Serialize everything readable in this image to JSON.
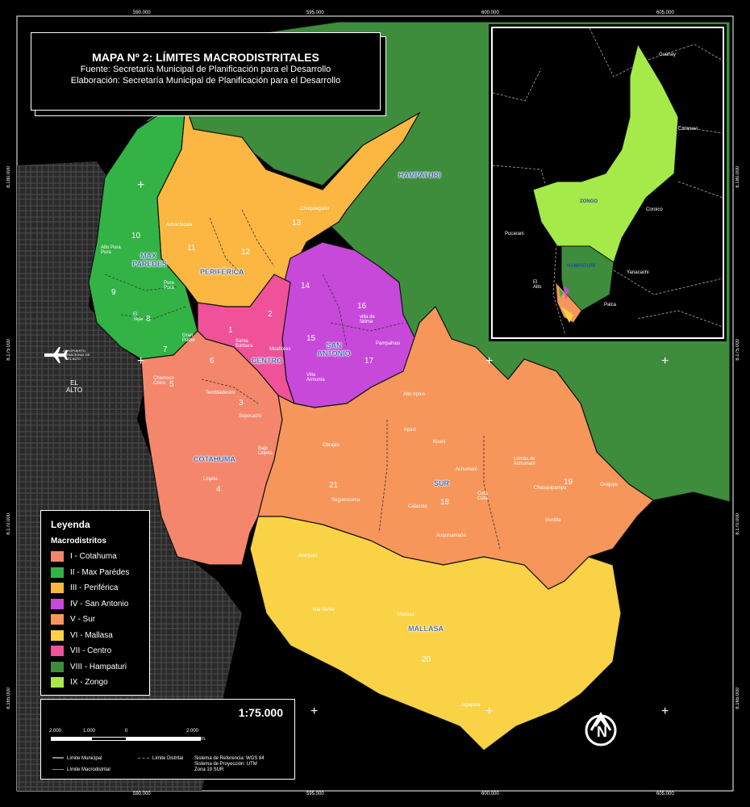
{
  "title": "MAPA Nº 2: LÍMITES MACRODISTRITALES",
  "source": "Fuente: Secretaría Municipal de Planificación para el Desarrollo",
  "elaboration": "Elaboración: Secretaría Municipal de Planificación para el Desarrollo",
  "coords_top": [
    "590.000",
    "595.000",
    "600.000",
    "605.000"
  ],
  "coords_bottom": [
    "590.000",
    "595.000",
    "600.000",
    "605.000"
  ],
  "coords_left": [
    "8.180.000",
    "8.175.000",
    "8.170.000",
    "8.165.000"
  ],
  "coords_right": [
    "8.180.000",
    "8.175.000",
    "8.170.000",
    "8.165.000"
  ],
  "legend": {
    "title": "Leyenda",
    "subtitle": "Macrodistritos",
    "items": [
      {
        "label": "I - Cotahuma",
        "color": "#f4876b"
      },
      {
        "label": "II - Max Parédes",
        "color": "#33b345"
      },
      {
        "label": "III - Periférica",
        "color": "#fbb741"
      },
      {
        "label": "IV - San Antonio",
        "color": "#c649d9"
      },
      {
        "label": "V - Sur",
        "color": "#f7965a"
      },
      {
        "label": "VI - Mallasa",
        "color": "#fad246"
      },
      {
        "label": "VII - Centro",
        "color": "#f0529a"
      },
      {
        "label": "VIII - Hampaturi",
        "color": "#3d8d3c"
      },
      {
        "label": "IX - Zongo",
        "color": "#a5ea48"
      }
    ]
  },
  "scale": {
    "ratio": "1:75.000",
    "ticks": [
      "2.000",
      "1.000",
      "0",
      "2.000"
    ],
    "unit": "m.",
    "municipal": "Límite Municipal",
    "macro": "Límite Macrodistrital",
    "distrital": "Límite Distrital",
    "ref": "Sistema de Referencia: WGS 84",
    "proj": "Sistema de Proyección: UTM",
    "zone": "Zona 19 SUR"
  },
  "macrodistricts": {
    "max_paredes": "MAX PAREDES",
    "periferica": "PERIFÉRICA",
    "centro": "CENTRO",
    "san_antonio": "SAN ANTONIO",
    "cotahuma": "COTAHUMA",
    "sur": "SUR",
    "mallasa": "MALLASA",
    "hampaturi": "HAMPATURI"
  },
  "el_alto": "EL ALTO",
  "airport": "AEROPUERTO INTERNACIONAL DE EL ALTO",
  "district_numbers": [
    "10",
    "11",
    "12",
    "13",
    "9",
    "8",
    "7",
    "1",
    "2",
    "14",
    "15",
    "16",
    "17",
    "6",
    "5",
    "3",
    "4",
    "21",
    "18",
    "19",
    "20"
  ],
  "places": {
    "achachicala": "Achachicala",
    "chuquiaguillo": "Chuquiaguillo",
    "alto_pura_pura": "Alto Pura Pura",
    "pura_pura": "Pura Pura",
    "el_tejar": "El Tejar",
    "gran_poder": "Gran Poder",
    "santa_barbara": "Santa Bárbara",
    "miraflores": "Miraflores",
    "villa_fatima": "villa de fátima",
    "pampahasi": "Pampahasi",
    "villa_armonia": "Villa Armonía",
    "chamoco_chico": "Chamoco Chico",
    "tembladerani": "Tembladerani",
    "sopocachi": "Sopocachi",
    "bajo_llojeta": "Bajo Llojeta",
    "llojeta": "Llojeta",
    "alto_irpavi": "Alto Irpavi",
    "irpavi": "Irpavi",
    "koani": "Koani",
    "obrajes": "Obrajes",
    "achumani": "Achumani",
    "lomas_achumani": "Lomas de Achumani",
    "calacoto": "Calacoto",
    "seguencoma": "Seguencoma",
    "cota_cota": "Cota Cota",
    "chasquipampa": "Chasquipampa",
    "ovejuyo": "Ovejuyo",
    "auquisamana": "Auquisamaña",
    "aranjuez": "Aranjuez",
    "isla_verde": "Isla Verde",
    "mallasa_town": "Mallasa",
    "jupapina": "Jupapina",
    "ventilla": "Ventilla"
  },
  "inset": {
    "guanay": "Guanay",
    "caranavi": "Caranavi",
    "zongo": "ZONGO",
    "coroico": "Coroico",
    "pucarani": "Pucarani",
    "hampaturi": "HAMPATURI",
    "yanacachi": "Yanacachi",
    "el_alto": "El Alto",
    "palca": "Palca"
  },
  "icons": [
    "airplane-icon",
    "north-arrow-icon"
  ]
}
